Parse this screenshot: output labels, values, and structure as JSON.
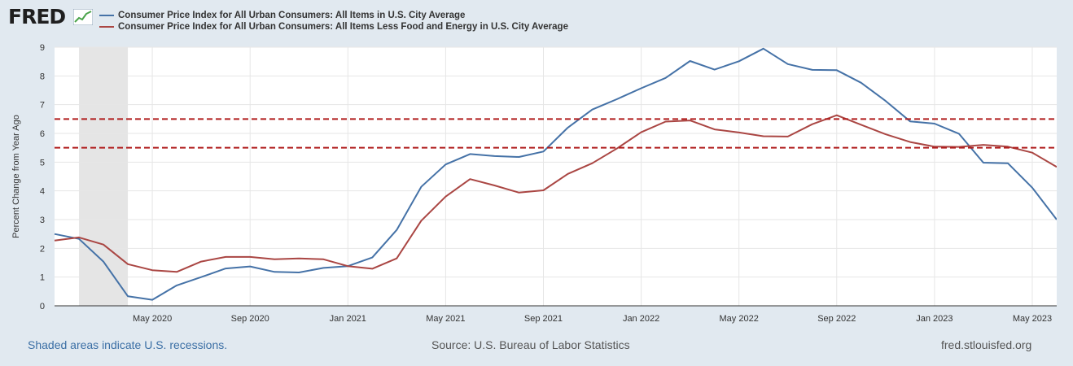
{
  "header": {
    "logo_text": "FRED"
  },
  "footer": {
    "recession_note": "Shaded areas indicate U.S. recessions.",
    "source": "Source: U.S. Bureau of Labor Statistics",
    "site": "fred.stlouisfed.org"
  },
  "chart_data": {
    "type": "line",
    "title": "",
    "xlabel": "",
    "ylabel": "Percent Change from Year Ago",
    "ylim": [
      0,
      9
    ],
    "xlim": [
      "2020-01",
      "2023-06"
    ],
    "yticks": [
      "0",
      "1",
      "2",
      "3",
      "4",
      "5",
      "6",
      "7",
      "8",
      "9"
    ],
    "xticks": [
      {
        "label": "May 2020",
        "date": "2020-05"
      },
      {
        "label": "Sep 2020",
        "date": "2020-09"
      },
      {
        "label": "Jan 2021",
        "date": "2021-01"
      },
      {
        "label": "May 2021",
        "date": "2021-05"
      },
      {
        "label": "Sep 2021",
        "date": "2021-09"
      },
      {
        "label": "Jan 2022",
        "date": "2022-01"
      },
      {
        "label": "May 2022",
        "date": "2022-05"
      },
      {
        "label": "Sep 2022",
        "date": "2022-09"
      },
      {
        "label": "Jan 2023",
        "date": "2023-01"
      },
      {
        "label": "May 2023",
        "date": "2023-05"
      }
    ],
    "grid": true,
    "legend_position": "top-left",
    "recession": {
      "start": "2020-02",
      "end": "2020-04"
    },
    "x": [
      "2020-01",
      "2020-02",
      "2020-03",
      "2020-04",
      "2020-05",
      "2020-06",
      "2020-07",
      "2020-08",
      "2020-09",
      "2020-10",
      "2020-11",
      "2020-12",
      "2021-01",
      "2021-02",
      "2021-03",
      "2021-04",
      "2021-05",
      "2021-06",
      "2021-07",
      "2021-08",
      "2021-09",
      "2021-10",
      "2021-11",
      "2021-12",
      "2022-01",
      "2022-02",
      "2022-03",
      "2022-04",
      "2022-05",
      "2022-06",
      "2022-07",
      "2022-08",
      "2022-09",
      "2022-10",
      "2022-11",
      "2022-12",
      "2023-01",
      "2023-02",
      "2023-03",
      "2023-04",
      "2023-05",
      "2023-06"
    ],
    "series": [
      {
        "name": "Consumer Price Index for All Urban Consumers: All Items in U.S. City Average",
        "color": "#4572a7",
        "values": [
          2.5,
          2.33,
          1.54,
          0.33,
          0.21,
          0.71,
          1.0,
          1.3,
          1.37,
          1.18,
          1.16,
          1.32,
          1.38,
          1.68,
          2.64,
          4.14,
          4.92,
          5.28,
          5.21,
          5.18,
          5.37,
          6.2,
          6.83,
          7.19,
          7.57,
          7.93,
          8.52,
          8.22,
          8.51,
          8.95,
          8.41,
          8.21,
          8.2,
          7.76,
          7.13,
          6.42,
          6.34,
          5.99,
          4.98,
          4.96,
          4.11,
          3.0
        ]
      },
      {
        "name": "Consumer Price Index for All Urban Consumers: All Items Less Food and Energy in U.S. City Average",
        "color": "#aa4643",
        "values": [
          2.27,
          2.38,
          2.13,
          1.45,
          1.24,
          1.18,
          1.54,
          1.7,
          1.7,
          1.62,
          1.65,
          1.62,
          1.38,
          1.29,
          1.65,
          2.96,
          3.8,
          4.41,
          4.19,
          3.94,
          4.02,
          4.59,
          4.96,
          5.47,
          6.04,
          6.41,
          6.45,
          6.14,
          6.03,
          5.9,
          5.89,
          6.32,
          6.63,
          6.3,
          5.97,
          5.7,
          5.54,
          5.53,
          5.6,
          5.54,
          5.33,
          4.83
        ]
      }
    ],
    "reference_lines": [
      {
        "y": 6.5,
        "color": "#b01c1c",
        "style": "dashed"
      },
      {
        "y": 5.5,
        "color": "#b01c1c",
        "style": "dashed"
      }
    ]
  }
}
